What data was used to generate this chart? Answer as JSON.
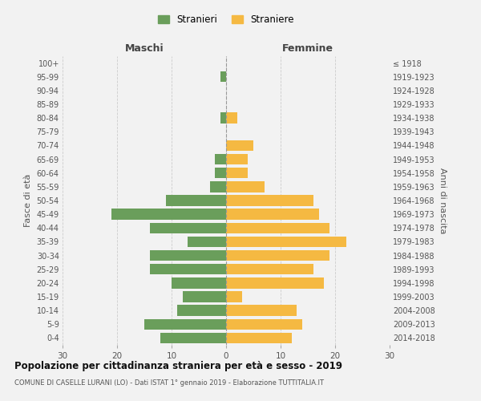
{
  "age_groups": [
    "0-4",
    "5-9",
    "10-14",
    "15-19",
    "20-24",
    "25-29",
    "30-34",
    "35-39",
    "40-44",
    "45-49",
    "50-54",
    "55-59",
    "60-64",
    "65-69",
    "70-74",
    "75-79",
    "80-84",
    "85-89",
    "90-94",
    "95-99",
    "100+"
  ],
  "birth_years": [
    "2014-2018",
    "2009-2013",
    "2004-2008",
    "1999-2003",
    "1994-1998",
    "1989-1993",
    "1984-1988",
    "1979-1983",
    "1974-1978",
    "1969-1973",
    "1964-1968",
    "1959-1963",
    "1954-1958",
    "1949-1953",
    "1944-1948",
    "1939-1943",
    "1934-1938",
    "1929-1933",
    "1924-1928",
    "1919-1923",
    "≤ 1918"
  ],
  "maschi": [
    12,
    15,
    9,
    8,
    10,
    14,
    14,
    7,
    14,
    21,
    11,
    3,
    2,
    2,
    0,
    0,
    1,
    0,
    0,
    1,
    0
  ],
  "femmine": [
    12,
    14,
    13,
    3,
    18,
    16,
    19,
    22,
    19,
    17,
    16,
    7,
    4,
    4,
    5,
    0,
    2,
    0,
    0,
    0,
    0
  ],
  "maschi_color": "#6a9e5b",
  "femmine_color": "#f5b942",
  "background_color": "#f2f2f2",
  "title": "Popolazione per cittadinanza straniera per età e sesso - 2019",
  "subtitle": "COMUNE DI CASELLE LURANI (LO) - Dati ISTAT 1° gennaio 2019 - Elaborazione TUTTITALIA.IT",
  "xlabel_left": "Maschi",
  "xlabel_right": "Femmine",
  "ylabel_left": "Fasce di età",
  "ylabel_right": "Anni di nascita",
  "xlim": 30,
  "legend_stranieri": "Stranieri",
  "legend_straniere": "Straniere"
}
